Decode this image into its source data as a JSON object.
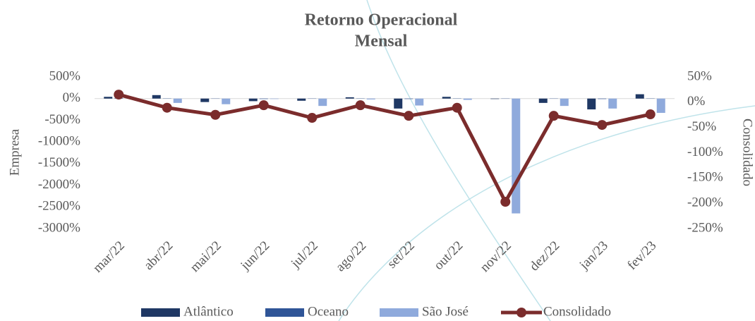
{
  "chart_data": {
    "type": "bar-line",
    "title": [
      "Retorno Operacional",
      "Mensal"
    ],
    "y_label": "Empresa",
    "y2_label": "Consolidado",
    "categories": [
      "mar/22",
      "abr/22",
      "mai/22",
      "jun/22",
      "jul/22",
      "ago/22",
      "set/22",
      "out/22",
      "nov/22",
      "dez/22",
      "jan/23",
      "fev/23"
    ],
    "ylim": [
      -3000,
      500
    ],
    "yticks": [
      {
        "value": 500,
        "label": "500%"
      },
      {
        "value": 0,
        "label": "0%"
      },
      {
        "value": -500,
        "label": "-500%"
      },
      {
        "value": -1000,
        "label": "-1000%"
      },
      {
        "value": -1500,
        "label": "-1500%"
      },
      {
        "value": -2000,
        "label": "-2000%"
      },
      {
        "value": -2500,
        "label": "-2500%"
      },
      {
        "value": -3000,
        "label": "-3000%"
      }
    ],
    "y2lim": [
      -250,
      50
    ],
    "y2ticks": [
      {
        "value": 50,
        "label": "50%"
      },
      {
        "value": 0,
        "label": "0%"
      },
      {
        "value": -50,
        "label": "-50%"
      },
      {
        "value": -100,
        "label": "-100%"
      },
      {
        "value": -150,
        "label": "-150%"
      },
      {
        "value": -200,
        "label": "-200%"
      },
      {
        "value": -250,
        "label": "-250%"
      }
    ],
    "series": [
      {
        "name": "Atlântico",
        "type": "bar",
        "color": "#1f3864",
        "values": [
          40,
          80,
          -80,
          -60,
          -50,
          30,
          -230,
          40,
          -10,
          -100,
          -250,
          100
        ]
      },
      {
        "name": "Oceano",
        "type": "bar",
        "color": "#2f5597",
        "values": [
          10,
          5,
          -5,
          -10,
          -5,
          5,
          -10,
          5,
          -5,
          -5,
          -10,
          5
        ]
      },
      {
        "name": "São  José",
        "type": "bar",
        "color": "#8faadc",
        "values": [
          0,
          -100,
          -130,
          -10,
          -170,
          -20,
          -160,
          -30,
          -2650,
          -170,
          -230,
          -330
        ]
      },
      {
        "name": "Consolidado",
        "type": "line",
        "axis": "y2",
        "color": "#7b2c2c",
        "values": [
          15,
          -11,
          -25,
          -6,
          -31,
          -6,
          -27,
          -11,
          -197,
          -27,
          -45,
          -24
        ]
      }
    ]
  }
}
